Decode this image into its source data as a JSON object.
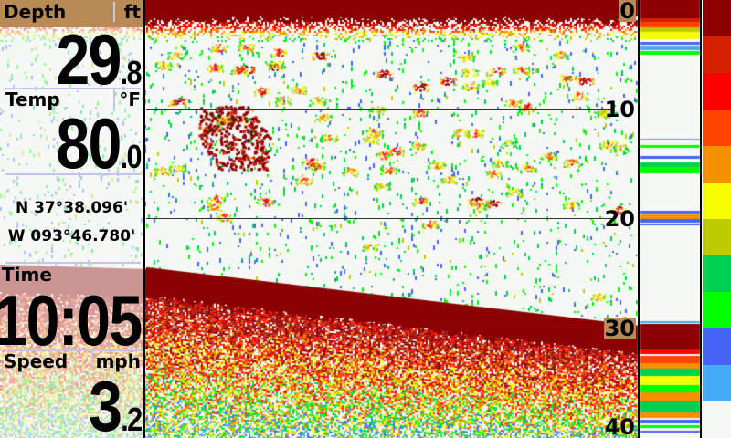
{
  "depth": {
    "label": "Depth",
    "unit": "ft",
    "whole": "29",
    "decimal": ".8"
  },
  "temp": {
    "label": "Temp",
    "unit": "°F",
    "whole": "80",
    "decimal": ".0"
  },
  "position": {
    "lat": "N 37°38.096'",
    "lon": "W 093°46.780'"
  },
  "time": {
    "label": "Time",
    "value": "10:05"
  },
  "speed": {
    "label": "Speed",
    "unit": "mph",
    "whole": "3",
    "decimal": ".2"
  },
  "depth_scale": [
    "0",
    "10",
    "20",
    "30",
    "40"
  ],
  "color_palette": [
    "#8b0000",
    "#d42000",
    "#ff0000",
    "#ff4400",
    "#f59000",
    "#f5ff00",
    "#bccc00",
    "#00d050",
    "#00ff00",
    "#4466f5",
    "#44aaf5",
    "#f5f8f5"
  ]
}
